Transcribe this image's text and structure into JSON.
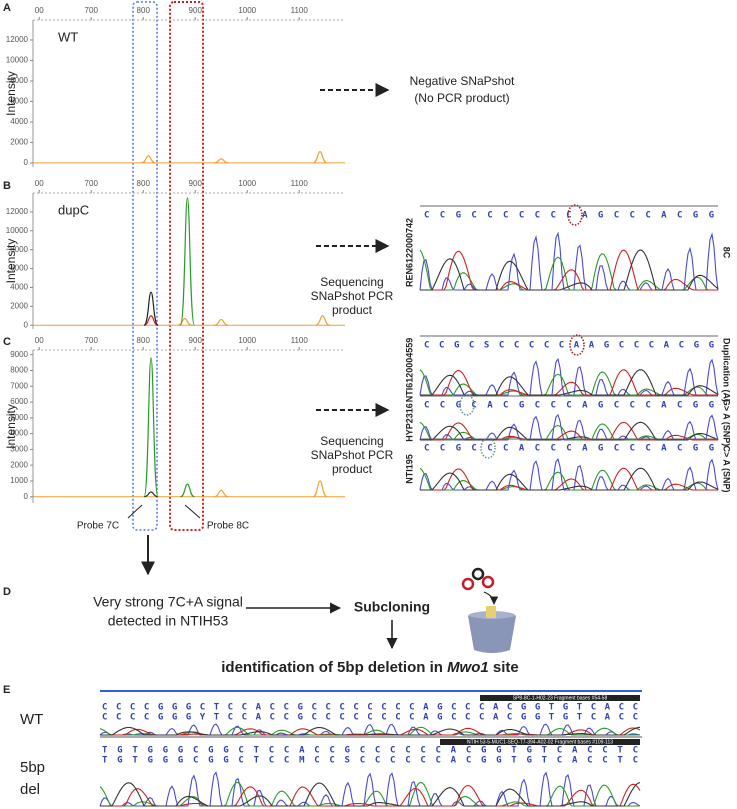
{
  "panel_labels": [
    "A",
    "B",
    "C",
    "D",
    "E"
  ],
  "chart_data": [
    {
      "type": "peaks",
      "label": "WT",
      "y_label": "Intensity",
      "xlim": [
        588,
        1188
      ],
      "xticks": [
        {
          "value": 600,
          "label": "00"
        },
        700,
        800,
        900,
        1000,
        1100
      ],
      "ylim": [
        -400,
        13950
      ],
      "yticks": [
        0,
        2000,
        4000,
        6000,
        8000,
        10000,
        12000
      ],
      "series": [
        {
          "color": "#f0a030",
          "x": [
            810,
            950,
            1140
          ],
          "values": [
            700,
            400,
            1100
          ]
        }
      ]
    },
    {
      "type": "peaks",
      "label": "dupC",
      "y_label": "Intensity",
      "xlim": [
        588,
        1188
      ],
      "xticks": [
        {
          "value": 600,
          "label": "00"
        },
        700,
        800,
        900,
        1000,
        1100
      ],
      "ylim": [
        -400,
        14000
      ],
      "yticks": [
        0,
        2000,
        4000,
        6000,
        8000,
        10000,
        12000
      ],
      "series": [
        {
          "color": "#f0a030",
          "x": [
            880,
            950,
            1145
          ],
          "values": [
            700,
            600,
            1000
          ]
        },
        {
          "color": "#cc2020",
          "x": [
            815
          ],
          "values": [
            1000
          ]
        },
        {
          "color": "#222222",
          "x": [
            815
          ],
          "values": [
            3500
          ]
        },
        {
          "color": "#2a9a2a",
          "x": [
            885
          ],
          "values": [
            13500
          ]
        }
      ]
    },
    {
      "type": "peaks",
      "y_label": "Intensity",
      "xlim": [
        588,
        1188
      ],
      "xticks": [
        {
          "value": 600,
          "label": "00"
        },
        700,
        800,
        900,
        1000,
        1100
      ],
      "ylim": [
        -400,
        9300
      ],
      "yticks": [
        0,
        1000,
        2000,
        3000,
        4000,
        5000,
        6000,
        7000,
        8000,
        9000
      ],
      "series": [
        {
          "color": "#f0a030",
          "x": [
            950,
            1140
          ],
          "values": [
            400,
            1000
          ]
        },
        {
          "color": "#222222",
          "x": [
            815
          ],
          "values": [
            300
          ]
        },
        {
          "color": "#2a9a2a",
          "x": [
            815,
            885
          ],
          "values": [
            8800,
            800
          ]
        }
      ]
    }
  ],
  "annotations": {
    "negative": [
      "Negative SNaPshot",
      "(No PCR product)"
    ],
    "sequencing_b": [
      "Sequencing",
      "SNaPshot PCR",
      "product"
    ],
    "sequencing_c": [
      "Sequencing",
      "SNaPshot PCR",
      "product"
    ],
    "probes": [
      "Probe 7C",
      "Probe 8C"
    ]
  },
  "sanger": [
    {
      "id": "REN6122000742",
      "note": "8C",
      "bases": "CCGCCCCCCCAGCCCACGG"
    },
    {
      "id": "NTI6120004559",
      "note": "Duplication (A)",
      "bases": "CCGCSCCCCCAAGCCCACGG"
    },
    {
      "id": "HYP2316",
      "note": "G> A (SNP)",
      "bases": "CCGCACGCCCAGCCCACGG"
    },
    {
      "id": "NTI195",
      "note": "C> A (SNP)",
      "bases": "CCGCCCACCCAGCCCACGG"
    }
  ],
  "panel_d": {
    "signal": [
      "Very strong 7C+A signal",
      "detected in NTIH53"
    ],
    "step": "Subcloning",
    "result": "identification of 5bp deletion in ",
    "site": "Mwo1",
    "result_end": " site"
  },
  "panel_e": [
    {
      "label": [
        "WT"
      ],
      "header": "SP8-8C-1-H02-23 Fragment bases #54-58",
      "bases": [
        "CCCCGGGCTCCACCGCCCCCCCCAGCCCACGGTGTCACC",
        "CCCCGGGYTCCACCGCCCCCCCCAGCCCACGGTGTCACC"
      ]
    },
    {
      "label": [
        "5bp",
        "del"
      ],
      "header": "NTIH 53-5-MUC1-SEQ-T7-394-A02-02 Fragment bases #109-113",
      "bases": [
        "TGTGGGCGGCTCCACCGCCCCCCACGGTGTCACCTC",
        "TGTGGGCGGCTCCMCCSCCCCCCACGGTGTCACCTC"
      ]
    }
  ]
}
